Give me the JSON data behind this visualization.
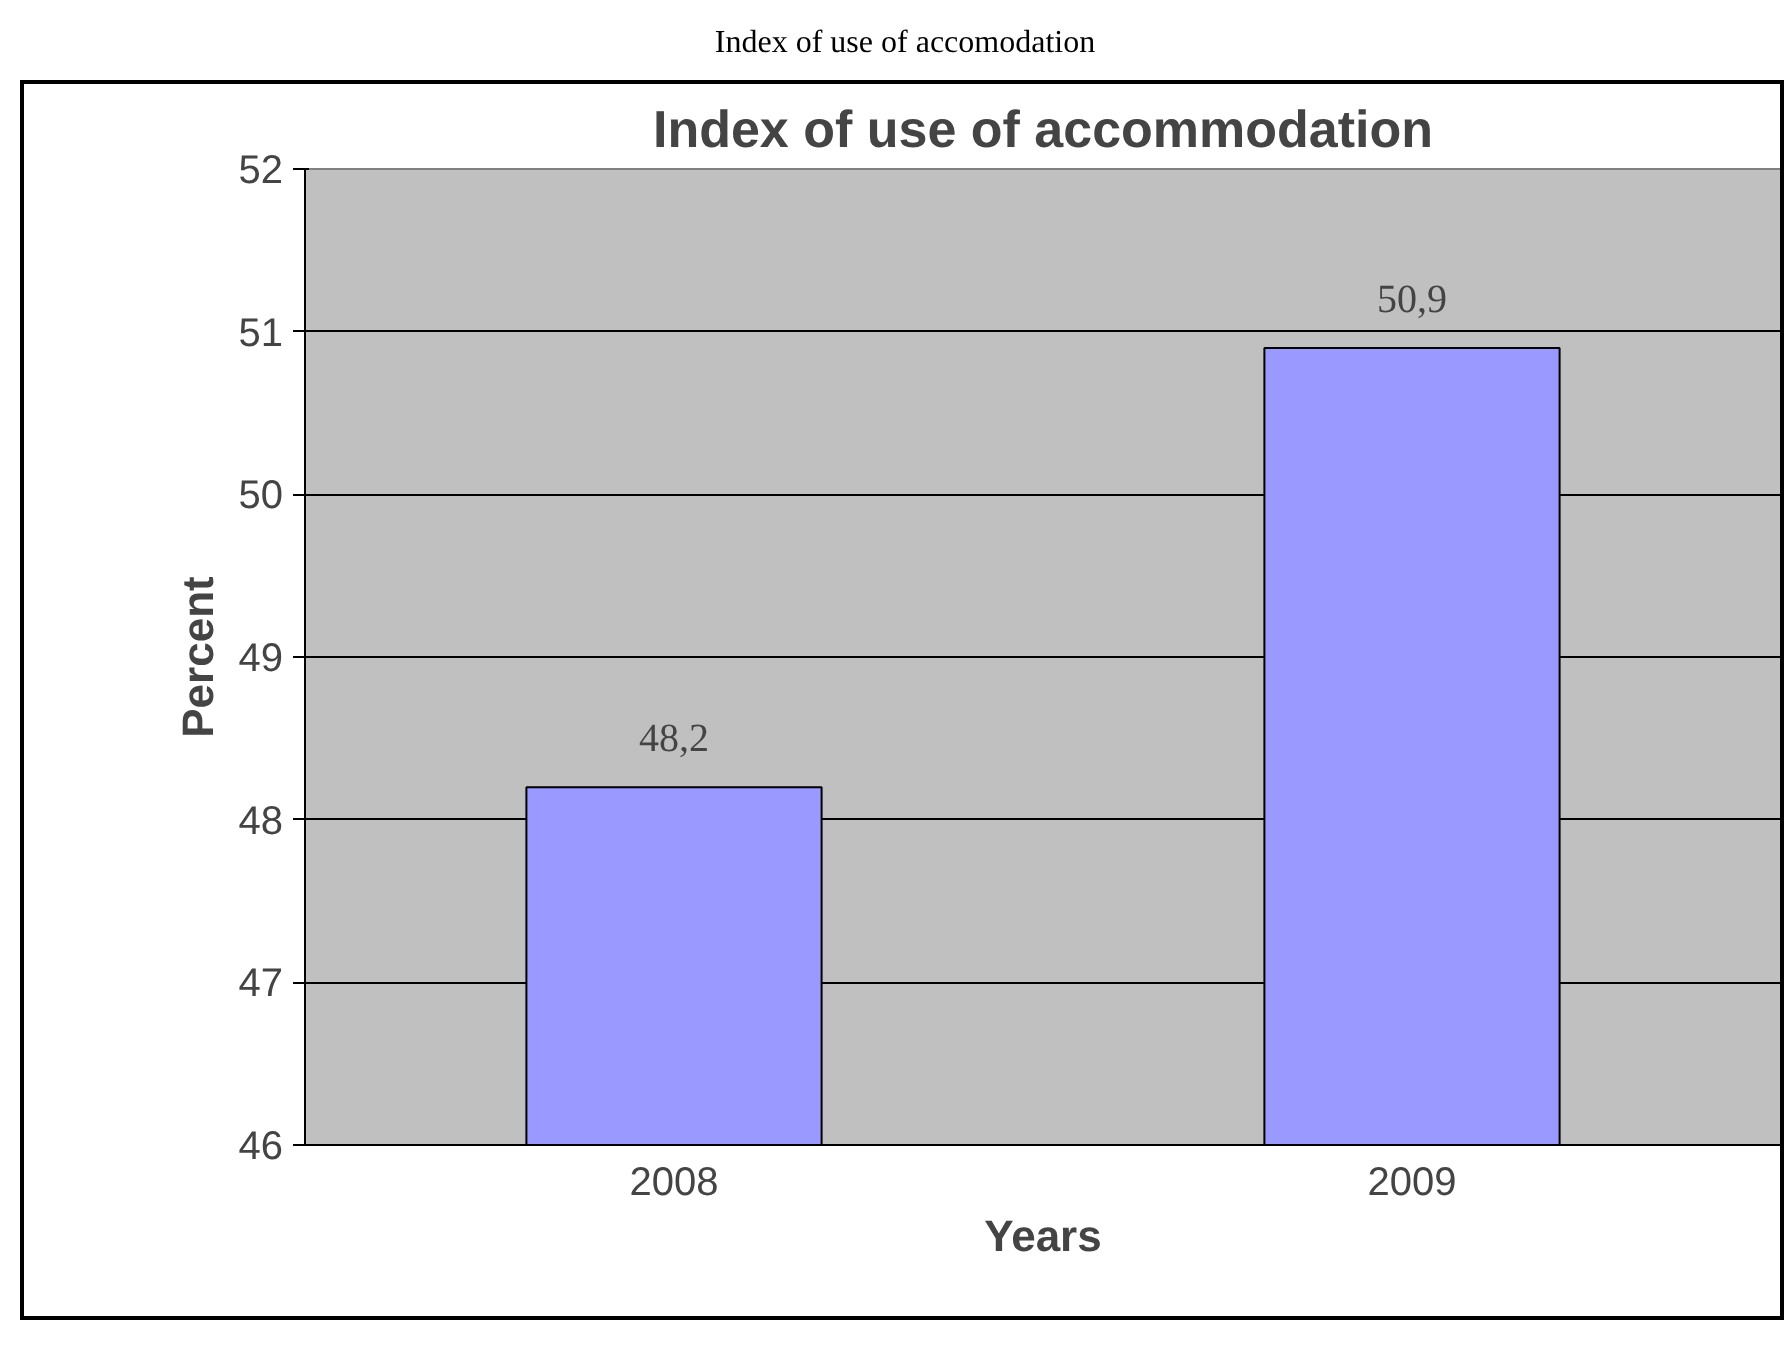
{
  "chart_data": {
    "type": "bar",
    "title": "Index of use of accommodation",
    "xlabel": "Years",
    "ylabel": "Percent",
    "annotations": [
      "Index of use of accomodation"
    ],
    "categories": [
      "2008",
      "2009"
    ],
    "values": [
      48.2,
      50.9
    ],
    "value_labels": [
      "48,2",
      "50,9"
    ],
    "color": "#9999ff",
    "ylim": [
      46,
      52
    ],
    "yticks": [
      46,
      47,
      48,
      49,
      50,
      51,
      52
    ],
    "grid": "y"
  }
}
